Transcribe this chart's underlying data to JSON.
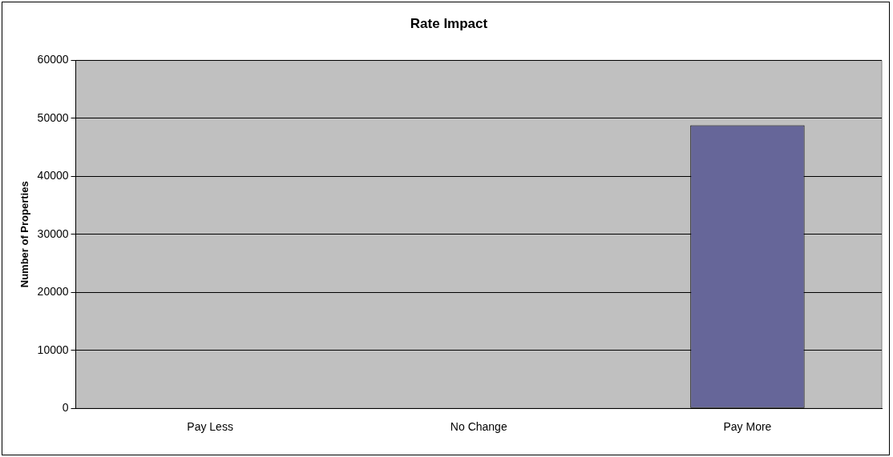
{
  "chart_data": {
    "type": "bar",
    "title": "Rate Impact",
    "ylabel": "Number of Properties",
    "categories": [
      "Pay Less",
      "No Change",
      "Pay More"
    ],
    "values": [
      0,
      0,
      48800
    ],
    "color": "#666699",
    "ylim": [
      0,
      60000
    ],
    "yticks": [
      0,
      10000,
      20000,
      30000,
      40000,
      50000,
      60000
    ],
    "grid": "y"
  }
}
